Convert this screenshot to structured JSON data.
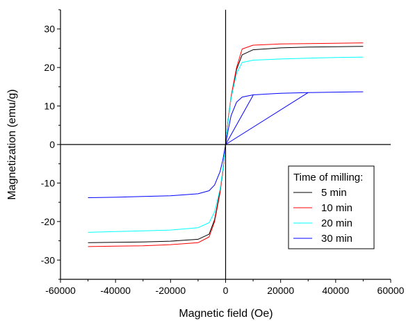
{
  "chart_data": {
    "type": "line",
    "xlabel": "Magnetic field (Oe)",
    "ylabel": "Magnetization (emu/g)",
    "xlim": [
      -60000,
      60000
    ],
    "ylim": [
      -35,
      35
    ],
    "xticks": [
      -60000,
      -40000,
      -20000,
      0,
      20000,
      40000,
      60000
    ],
    "yticks": [
      -30,
      -20,
      -10,
      0,
      10,
      20,
      30
    ],
    "legend": {
      "title": "Time of milling:",
      "placement": "lower-right"
    },
    "series": [
      {
        "name": "5 min",
        "color": "#000000",
        "points": [
          [
            -50000,
            -25.5
          ],
          [
            -40000,
            -25.4
          ],
          [
            -30000,
            -25.3
          ],
          [
            -20000,
            -25.1
          ],
          [
            -10000,
            -24.6
          ],
          [
            -6000,
            -23.3
          ],
          [
            -4000,
            -19.5
          ],
          [
            -2000,
            -12.0
          ],
          [
            -1000,
            -7.0
          ],
          [
            0,
            0
          ],
          [
            1000,
            7.0
          ],
          [
            2000,
            12.0
          ],
          [
            4000,
            19.5
          ],
          [
            6000,
            23.3
          ],
          [
            10000,
            24.6
          ],
          [
            20000,
            25.1
          ],
          [
            30000,
            25.3
          ],
          [
            40000,
            25.4
          ],
          [
            50000,
            25.5
          ]
        ]
      },
      {
        "name": "10 min",
        "color": "#ff0000",
        "points": [
          [
            -50000,
            -26.5
          ],
          [
            -40000,
            -26.4
          ],
          [
            -30000,
            -26.3
          ],
          [
            -20000,
            -26.0
          ],
          [
            -10000,
            -25.5
          ],
          [
            -6000,
            -24.0
          ],
          [
            -4000,
            -20.0
          ],
          [
            -2000,
            -12.5
          ],
          [
            -1000,
            -7.0
          ],
          [
            0,
            0
          ],
          [
            1000,
            7.0
          ],
          [
            2000,
            12.5
          ],
          [
            4000,
            20.0
          ],
          [
            6000,
            24.8
          ],
          [
            10000,
            25.8
          ],
          [
            20000,
            26.1
          ],
          [
            30000,
            26.2
          ],
          [
            40000,
            26.3
          ],
          [
            50000,
            26.4
          ]
        ]
      },
      {
        "name": "20 min",
        "color": "#00ffff",
        "points": [
          [
            -50000,
            -22.8
          ],
          [
            -40000,
            -22.6
          ],
          [
            -30000,
            -22.4
          ],
          [
            -20000,
            -22.2
          ],
          [
            -10000,
            -21.6
          ],
          [
            -6000,
            -20.3
          ],
          [
            -4000,
            -17.5
          ],
          [
            -2000,
            -11.5
          ],
          [
            -1000,
            -6.5
          ],
          [
            0,
            0
          ],
          [
            1000,
            6.5
          ],
          [
            2000,
            12.0
          ],
          [
            4000,
            18.5
          ],
          [
            6000,
            21.3
          ],
          [
            10000,
            21.9
          ],
          [
            20000,
            22.2
          ],
          [
            30000,
            22.4
          ],
          [
            40000,
            22.6
          ],
          [
            50000,
            22.7
          ]
        ]
      },
      {
        "name": "30 min",
        "color": "#0000ff",
        "points": [
          [
            -50000,
            -13.8
          ],
          [
            -40000,
            -13.7
          ],
          [
            -30000,
            -13.5
          ],
          [
            -20000,
            -13.3
          ],
          [
            -10000,
            -12.8
          ],
          [
            -6000,
            -12.0
          ],
          [
            -4000,
            -10.5
          ],
          [
            -2000,
            -7.0
          ],
          [
            -1000,
            -4.0
          ],
          [
            0,
            0
          ],
          [
            1000,
            4.0
          ],
          [
            2000,
            7.5
          ],
          [
            4000,
            11.0
          ],
          [
            6000,
            12.3
          ],
          [
            10000,
            12.9
          ],
          [
            20000,
            13.3
          ],
          [
            30000,
            13.5
          ],
          [
            40000,
            13.6
          ],
          [
            50000,
            13.7
          ]
        ]
      },
      {
        "name": "",
        "color": "#0000ff",
        "points": [
          [
            0,
            0
          ],
          [
            30000,
            13.5
          ]
        ]
      },
      {
        "name": "",
        "color": "#0000ff",
        "points": [
          [
            0,
            0
          ],
          [
            10000,
            12.8
          ]
        ]
      }
    ]
  }
}
